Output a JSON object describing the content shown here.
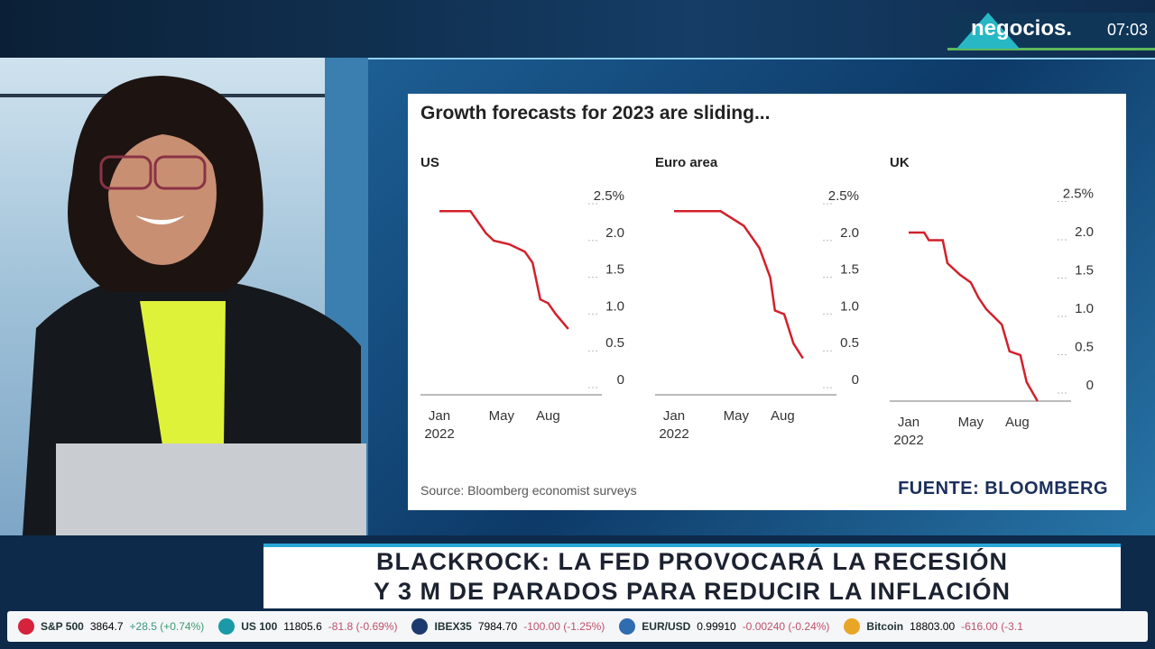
{
  "channel": {
    "brand": "negocios.",
    "time": "07:03",
    "studio_logo": "negocios"
  },
  "headline": {
    "line1": "BLACKROCK: LA FED PROVOCARÁ LA RECESIÓN",
    "line2": "Y 3 M DE PARADOS PARA REDUCIR LA INFLACIÓN"
  },
  "ticker": [
    {
      "name": "S&P 500",
      "value": "3864.7",
      "change": "+28.5 (+0.74%)",
      "dir": "up",
      "color": "#d4233a"
    },
    {
      "name": "US 100",
      "value": "11805.6",
      "change": "-81.8 (-0.69%)",
      "dir": "down",
      "color": "#1a9aa8"
    },
    {
      "name": "IBEX35",
      "value": "7984.70",
      "change": "-100.00 (-1.25%)",
      "dir": "down",
      "color": "#1b3a6e"
    },
    {
      "name": "EUR/USD",
      "value": "0.99910",
      "change": "-0.00240 (-0.24%)",
      "dir": "down",
      "color": "#2f6db0"
    },
    {
      "name": "Bitcoin",
      "value": "18803.00",
      "change": "-616.00 (-3.1",
      "dir": "down",
      "color": "#e8a626"
    }
  ],
  "chart_data": {
    "type": "line",
    "title": "Growth forecasts for 2023 are sliding...",
    "source": "Source: Bloomberg economist surveys",
    "credit": "FUENTE: BLOOMBERG",
    "x_unit": "months since Jan 2022",
    "yticks": [
      "2.5%",
      "2.0",
      "1.5",
      "1.0",
      "0.5",
      "0"
    ],
    "ytick_values": [
      2.5,
      2.0,
      1.5,
      1.0,
      0.5,
      0
    ],
    "xticks": [
      {
        "label": "Jan",
        "sub": "2022",
        "x": 0
      },
      {
        "label": "May",
        "sub": "",
        "x": 4
      },
      {
        "label": "Aug",
        "sub": "",
        "x": 7
      }
    ],
    "line_color": "#d3202a",
    "panels": [
      {
        "name": "US",
        "ylim": [
          0,
          2.5
        ],
        "points": [
          [
            0,
            2.3
          ],
          [
            2,
            2.3
          ],
          [
            3,
            2.0
          ],
          [
            3.5,
            1.9
          ],
          [
            4.5,
            1.85
          ],
          [
            5.5,
            1.75
          ],
          [
            6,
            1.6
          ],
          [
            6.5,
            1.1
          ],
          [
            7,
            1.05
          ],
          [
            7.5,
            0.9
          ],
          [
            8.3,
            0.7
          ]
        ]
      },
      {
        "name": "Euro area",
        "ylim": [
          0,
          2.5
        ],
        "points": [
          [
            0,
            2.3
          ],
          [
            3,
            2.3
          ],
          [
            4.5,
            2.1
          ],
          [
            5.5,
            1.8
          ],
          [
            6.2,
            1.4
          ],
          [
            6.5,
            0.95
          ],
          [
            7.1,
            0.9
          ],
          [
            7.7,
            0.5
          ],
          [
            8.3,
            0.3
          ]
        ]
      },
      {
        "name": "UK",
        "ylim": [
          -0.2,
          2.5
        ],
        "points": [
          [
            0,
            2.0
          ],
          [
            1,
            2.0
          ],
          [
            1.3,
            1.9
          ],
          [
            2.2,
            1.9
          ],
          [
            2.5,
            1.6
          ],
          [
            3.3,
            1.45
          ],
          [
            4,
            1.35
          ],
          [
            4.5,
            1.15
          ],
          [
            5,
            1.0
          ],
          [
            6,
            0.8
          ],
          [
            6.5,
            0.45
          ],
          [
            7.2,
            0.4
          ],
          [
            7.6,
            0.05
          ],
          [
            8.3,
            -0.2
          ]
        ]
      }
    ]
  }
}
